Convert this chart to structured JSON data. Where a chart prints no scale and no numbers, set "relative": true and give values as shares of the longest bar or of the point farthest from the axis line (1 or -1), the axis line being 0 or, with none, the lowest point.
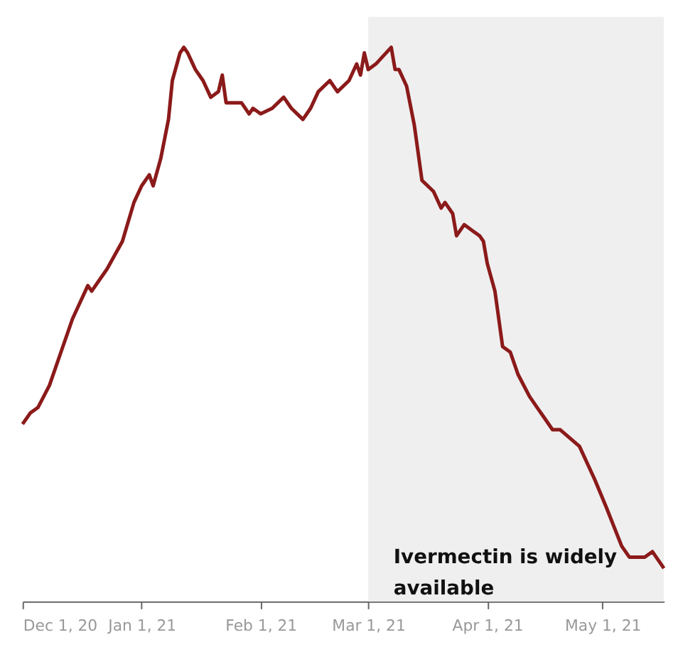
{
  "chart_data": {
    "type": "line",
    "relative": true,
    "x": [
      "2020-12-01",
      "2020-12-03",
      "2020-12-05",
      "2020-12-08",
      "2020-12-11",
      "2020-12-14",
      "2020-12-16",
      "2020-12-18",
      "2020-12-19",
      "2020-12-23",
      "2020-12-27",
      "2020-12-30",
      "2021-01-01",
      "2021-01-03",
      "2021-01-04",
      "2021-01-06",
      "2021-01-08",
      "2021-01-09",
      "2021-01-11",
      "2021-01-12",
      "2021-01-13",
      "2021-01-15",
      "2021-01-17",
      "2021-01-19",
      "2021-01-21",
      "2021-01-22",
      "2021-01-23",
      "2021-01-27",
      "2021-01-29",
      "2021-01-30",
      "2021-02-01",
      "2021-02-04",
      "2021-02-07",
      "2021-02-09",
      "2021-02-12",
      "2021-02-14",
      "2021-02-16",
      "2021-02-19",
      "2021-02-21",
      "2021-02-24",
      "2021-02-26",
      "2021-02-27",
      "2021-02-28",
      "2021-03-01",
      "2021-03-03",
      "2021-03-07",
      "2021-03-08",
      "2021-03-09",
      "2021-03-11",
      "2021-03-13",
      "2021-03-14",
      "2021-03-15",
      "2021-03-18",
      "2021-03-20",
      "2021-03-21",
      "2021-03-23",
      "2021-03-24",
      "2021-03-26",
      "2021-03-28",
      "2021-03-30",
      "2021-03-31",
      "2021-04-01",
      "2021-04-03",
      "2021-04-05",
      "2021-04-07",
      "2021-04-09",
      "2021-04-12",
      "2021-04-14",
      "2021-04-18",
      "2021-04-20",
      "2021-04-25",
      "2021-04-29",
      "2021-05-02",
      "2021-05-06",
      "2021-05-08",
      "2021-05-12",
      "2021-05-14",
      "2021-05-17"
    ],
    "series": [
      {
        "color": "#8b1a1a",
        "values": [
          0.32,
          0.34,
          0.35,
          0.39,
          0.45,
          0.51,
          0.54,
          0.57,
          0.56,
          0.6,
          0.65,
          0.72,
          0.75,
          0.77,
          0.75,
          0.8,
          0.87,
          0.94,
          0.99,
          1.0,
          0.99,
          0.96,
          0.94,
          0.91,
          0.92,
          0.95,
          0.9,
          0.9,
          0.88,
          0.89,
          0.88,
          0.89,
          0.91,
          0.89,
          0.87,
          0.89,
          0.92,
          0.94,
          0.92,
          0.94,
          0.97,
          0.95,
          0.99,
          0.96,
          0.97,
          1.0,
          0.96,
          0.96,
          0.93,
          0.86,
          0.81,
          0.76,
          0.74,
          0.71,
          0.72,
          0.7,
          0.66,
          0.68,
          0.67,
          0.66,
          0.65,
          0.61,
          0.56,
          0.46,
          0.45,
          0.41,
          0.37,
          0.35,
          0.31,
          0.31,
          0.28,
          0.22,
          0.17,
          0.1,
          0.08,
          0.08,
          0.09,
          0.06
        ]
      }
    ],
    "xlim": [
      "2020-12-01",
      "2021-05-17"
    ],
    "xticks": [
      {
        "value": "2020-12-01",
        "label": "Dec 1, 20"
      },
      {
        "value": "2021-01-01",
        "label": "Jan 1, 21"
      },
      {
        "value": "2021-02-01",
        "label": "Feb 1, 21"
      },
      {
        "value": "2021-03-01",
        "label": "Mar 1, 21"
      },
      {
        "value": "2021-04-01",
        "label": "Apr 1, 21"
      },
      {
        "value": "2021-05-01",
        "label": "May 1, 21"
      }
    ],
    "bands": [
      {
        "axis": "x",
        "from": "2021-03-01",
        "to": "2021-05-17",
        "label": "Ivermectin is widely available",
        "color": "#efefef"
      }
    ],
    "grid": false,
    "line_style": "solid",
    "marker": "none"
  }
}
